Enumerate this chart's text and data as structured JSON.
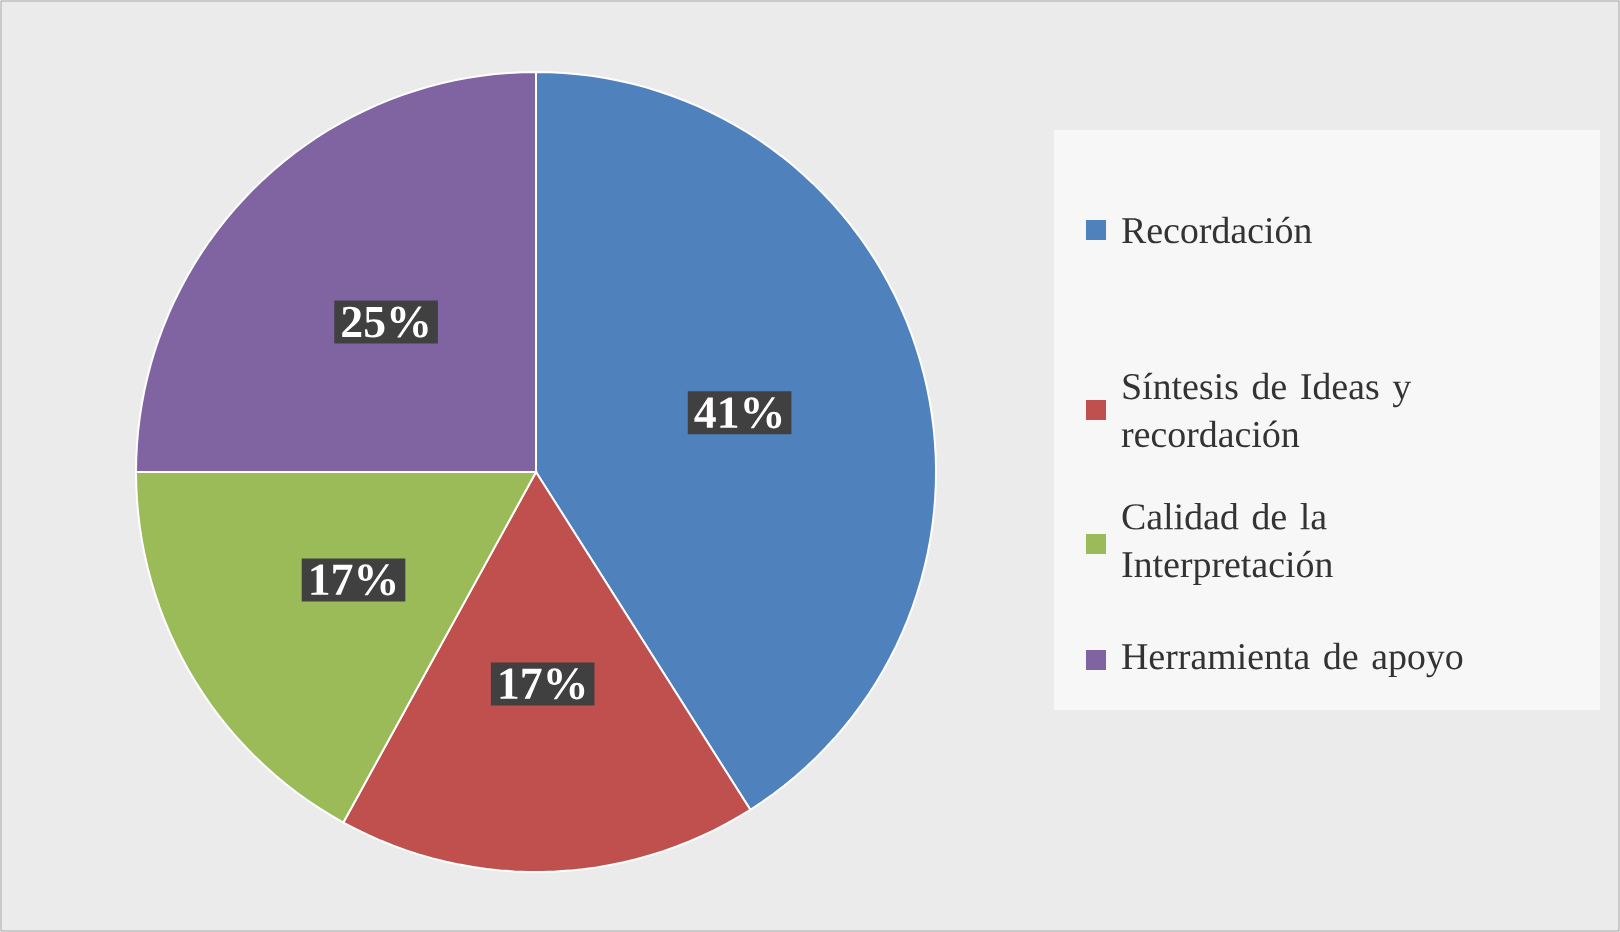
{
  "chart_data": {
    "type": "pie",
    "categories": [
      "Recordación",
      "Síntesis de Ideas y recordación",
      "Calidad de la Interpretación",
      "Herramienta de apoyo"
    ],
    "values": [
      41,
      17,
      17,
      25
    ],
    "value_labels": [
      "41%",
      "17%",
      "17%",
      "25%"
    ],
    "colors": [
      "#4f81bd",
      "#c0504d",
      "#9bbb59",
      "#8064a2"
    ],
    "legend": "right"
  }
}
